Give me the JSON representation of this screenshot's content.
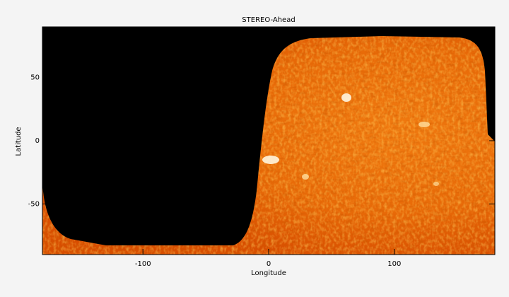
{
  "chart_data": {
    "type": "image",
    "title": "STEREO-Ahead",
    "x_label": "Longitude",
    "y_label": "Latitude",
    "xlim": [
      -180,
      180
    ],
    "ylim": [
      -90,
      90
    ],
    "xticks": [
      -100,
      0,
      100
    ],
    "yticks": [
      -50,
      0,
      50
    ]
  }
}
